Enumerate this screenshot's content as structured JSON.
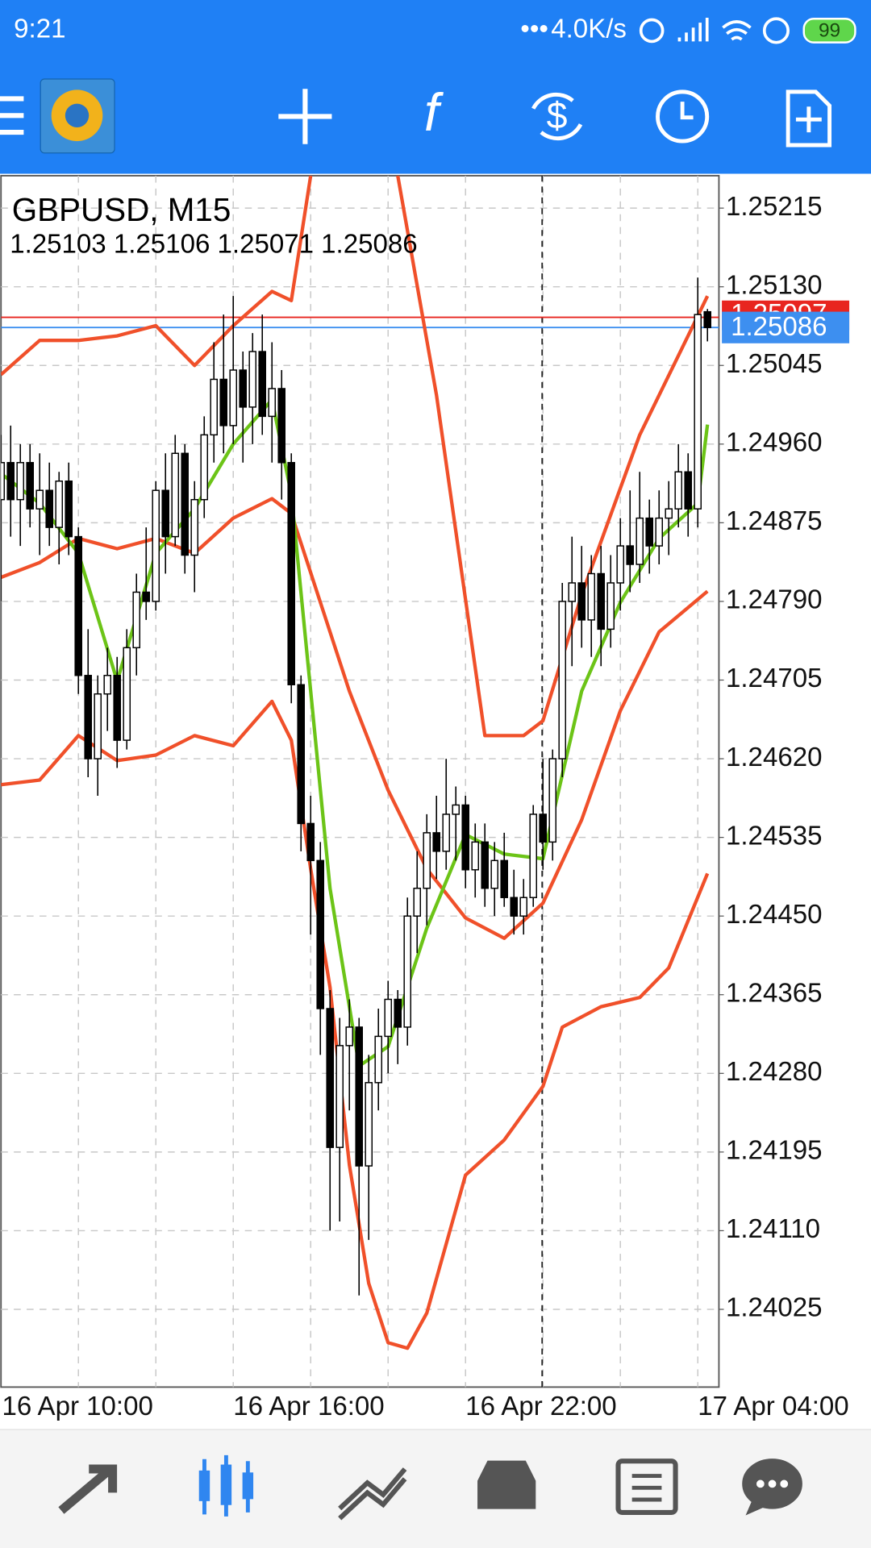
{
  "status_bar": {
    "time": "9:21",
    "speed": "4.0K/s",
    "battery": "99"
  },
  "chart_data": {
    "type": "candlestick",
    "title": "GBPUSD, M15",
    "subtitle": "1.25103 1.25106 1.25071 1.25086",
    "categories": [
      "16 Apr 10:00",
      null,
      null,
      null,
      null,
      null,
      null,
      null,
      null,
      null,
      null,
      null,
      null,
      null,
      null,
      null,
      null,
      null,
      null,
      null,
      null,
      null,
      null,
      null,
      "16 Apr 16:00",
      null,
      null,
      null,
      null,
      null,
      null,
      null,
      null,
      null,
      null,
      null,
      null,
      null,
      null,
      null,
      null,
      null,
      null,
      null,
      null,
      null,
      null,
      null,
      "16 Apr 22:00",
      null,
      null,
      null,
      null,
      null,
      null,
      null,
      null,
      null,
      null,
      null,
      null,
      null,
      null,
      null,
      null,
      null,
      null,
      null,
      null,
      null,
      null,
      null,
      "17 Apr 04:00",
      null
    ],
    "open": [
      1.249,
      1.2494,
      1.249,
      1.2494,
      1.2489,
      1.2491,
      1.2487,
      1.2492,
      1.2486,
      1.2471,
      1.2462,
      1.2469,
      1.2471,
      1.2464,
      1.2474,
      1.248,
      1.2479,
      1.2491,
      1.2486,
      1.2495,
      1.2484,
      1.249,
      1.2497,
      1.2503,
      1.2498,
      1.2504,
      1.25,
      1.2506,
      1.2499,
      1.2502,
      1.2494,
      1.247,
      1.2455,
      1.2451,
      1.2435,
      1.242,
      1.2431,
      1.2433,
      1.2418,
      1.2427,
      1.2432,
      1.2436,
      1.2433,
      1.2445,
      1.2448,
      1.2454,
      1.2452,
      1.2456,
      1.2457,
      1.245,
      1.2453,
      1.2448,
      1.2451,
      1.2447,
      1.2445,
      1.2447,
      1.2456,
      1.2453,
      1.2462,
      1.2479,
      1.2481,
      1.2477,
      1.2482,
      1.2476,
      1.2481,
      1.2485,
      1.2483,
      1.2488,
      1.2485,
      1.2488,
      1.2489,
      1.2493,
      1.2489,
      1.25103
    ],
    "high": [
      1.2497,
      1.2498,
      1.2496,
      1.2496,
      1.2495,
      1.2494,
      1.2493,
      1.2494,
      1.2487,
      1.2476,
      1.2471,
      1.2474,
      1.2473,
      1.2476,
      1.2482,
      1.2487,
      1.2492,
      1.2495,
      1.2497,
      1.2496,
      1.2492,
      1.2499,
      1.2507,
      1.251,
      1.2512,
      1.2506,
      1.2508,
      1.251,
      1.2507,
      1.2504,
      1.2495,
      1.2471,
      1.2458,
      1.2453,
      1.2437,
      1.2434,
      1.2436,
      1.2434,
      1.243,
      1.2435,
      1.2438,
      1.2437,
      1.2447,
      1.2452,
      1.2456,
      1.2458,
      1.2462,
      1.2459,
      1.2458,
      1.2455,
      1.2455,
      1.2453,
      1.2454,
      1.245,
      1.2449,
      1.2457,
      1.2462,
      1.2463,
      1.2481,
      1.2486,
      1.2485,
      1.2484,
      1.2485,
      1.2484,
      1.2488,
      1.2491,
      1.2493,
      1.249,
      1.2491,
      1.2492,
      1.2496,
      1.2495,
      1.2514,
      1.25106
    ],
    "low": [
      1.2479,
      1.2486,
      1.2485,
      1.2487,
      1.2484,
      1.2485,
      1.2483,
      1.2484,
      1.2469,
      1.246,
      1.2458,
      1.2465,
      1.2461,
      1.2463,
      1.2471,
      1.2477,
      1.2478,
      1.2482,
      1.2485,
      1.2482,
      1.248,
      1.2488,
      1.2494,
      1.2495,
      1.2496,
      1.2494,
      1.2496,
      1.2497,
      1.2494,
      1.249,
      1.2468,
      1.2452,
      1.2443,
      1.243,
      1.2411,
      1.2412,
      1.2424,
      1.2404,
      1.241,
      1.2424,
      1.2428,
      1.2429,
      1.2431,
      1.2441,
      1.2444,
      1.2449,
      1.245,
      1.2451,
      1.2448,
      1.2447,
      1.2446,
      1.2445,
      1.2446,
      1.2443,
      1.2443,
      1.2446,
      1.245,
      1.2451,
      1.246,
      1.2472,
      1.2474,
      1.2473,
      1.2472,
      1.2474,
      1.2478,
      1.248,
      1.2481,
      1.2482,
      1.2483,
      1.2484,
      1.2487,
      1.2486,
      1.2487,
      1.25071
    ],
    "close": [
      1.2494,
      1.249,
      1.2494,
      1.2489,
      1.2491,
      1.2487,
      1.2492,
      1.2486,
      1.2471,
      1.2462,
      1.2469,
      1.2471,
      1.2464,
      1.2474,
      1.248,
      1.2479,
      1.2491,
      1.2486,
      1.2495,
      1.2484,
      1.249,
      1.2497,
      1.2503,
      1.2498,
      1.2504,
      1.25,
      1.2506,
      1.2499,
      1.2502,
      1.2494,
      1.247,
      1.2455,
      1.2451,
      1.2435,
      1.242,
      1.2431,
      1.2433,
      1.2418,
      1.2427,
      1.2432,
      1.2436,
      1.2433,
      1.2445,
      1.2448,
      1.2454,
      1.2452,
      1.2456,
      1.2457,
      1.245,
      1.2453,
      1.2448,
      1.2451,
      1.2447,
      1.2445,
      1.2447,
      1.2456,
      1.2453,
      1.2462,
      1.2479,
      1.2481,
      1.2477,
      1.2482,
      1.2476,
      1.2481,
      1.2485,
      1.2483,
      1.2488,
      1.2485,
      1.2488,
      1.2489,
      1.2493,
      1.2489,
      1.251,
      1.25086
    ],
    "overlays": [
      {
        "color": "#f0502a",
        "x": [
          0,
          4,
          8,
          12,
          16,
          20,
          24,
          28,
          30,
          32,
          36,
          41,
          45,
          50,
          54,
          56,
          60,
          66,
          73
        ],
        "values": [
          1.25035,
          1.25072,
          1.25072,
          1.25077,
          1.25088,
          1.25045,
          1.25088,
          1.25125,
          1.25115,
          1.2525,
          null,
          1.2525,
          1.25013,
          1.24645,
          1.24645,
          1.24661,
          1.24797,
          1.2497,
          1.2512
        ]
      },
      {
        "color": "#f0502a",
        "x": [
          0,
          4,
          8,
          12,
          16,
          20,
          24,
          28,
          30,
          32,
          36,
          40,
          44,
          48,
          52,
          56,
          60,
          64,
          68,
          73
        ],
        "values": [
          1.24816,
          1.24832,
          1.24858,
          1.24847,
          1.24858,
          1.24842,
          1.2488,
          1.24901,
          1.24885,
          1.24821,
          1.24693,
          1.24586,
          1.24501,
          1.24448,
          1.24426,
          1.24464,
          1.24554,
          1.24672,
          1.24757,
          1.24801
        ]
      },
      {
        "color": "#f0502a",
        "x": [
          0,
          4,
          8,
          12,
          16,
          20,
          24,
          28,
          30,
          32,
          34,
          36,
          38,
          40,
          42,
          44,
          48,
          52,
          56,
          58,
          62,
          66,
          69,
          73
        ],
        "values": [
          1.24592,
          1.24597,
          1.24645,
          1.24618,
          1.24624,
          1.24645,
          1.24634,
          1.24682,
          1.2464,
          1.24501,
          1.24373,
          1.24181,
          1.24053,
          1.23989,
          1.23983,
          1.24021,
          1.2417,
          1.24208,
          1.24266,
          1.2433,
          1.24352,
          1.24362,
          1.24394,
          1.24496
        ]
      },
      {
        "color": "#6cc417",
        "x": [
          0,
          4,
          8,
          12,
          16,
          20,
          24,
          28,
          30,
          32,
          34,
          36,
          37,
          40,
          44,
          48,
          52,
          56,
          60,
          64,
          68,
          72,
          73
        ],
        "values": [
          1.24928,
          1.24896,
          1.24842,
          1.24704,
          1.24842,
          1.2489,
          1.2496,
          1.25008,
          1.24906,
          1.24693,
          1.2448,
          1.24352,
          1.24288,
          1.24309,
          1.24437,
          1.24538,
          1.24517,
          1.24512,
          1.24693,
          1.24789,
          1.24858,
          1.24896,
          1.24981
        ]
      }
    ],
    "ylim": [
      1.23941,
      1.2525
    ],
    "yticks": [
      1.25215,
      {
        "value": 1.2513,
        "label": "1.25130"
      },
      1.25045,
      {
        "value": 1.2496,
        "label": "1.24960"
      },
      1.24875,
      {
        "value": 1.2479,
        "label": "1.24790"
      },
      1.24705,
      {
        "value": 1.2462,
        "label": "1.24620"
      },
      1.24535,
      {
        "value": 1.2445,
        "label": "1.24450"
      },
      1.24365,
      {
        "value": 1.2428,
        "label": "1.24280"
      },
      1.24195,
      {
        "value": 1.2411,
        "label": "1.24110"
      },
      1.24025
    ],
    "ask": {
      "value": 1.25097,
      "color": "#e8251f"
    },
    "bid": {
      "value": 1.25086,
      "color": "#3d8ff0"
    },
    "grid": true
  }
}
